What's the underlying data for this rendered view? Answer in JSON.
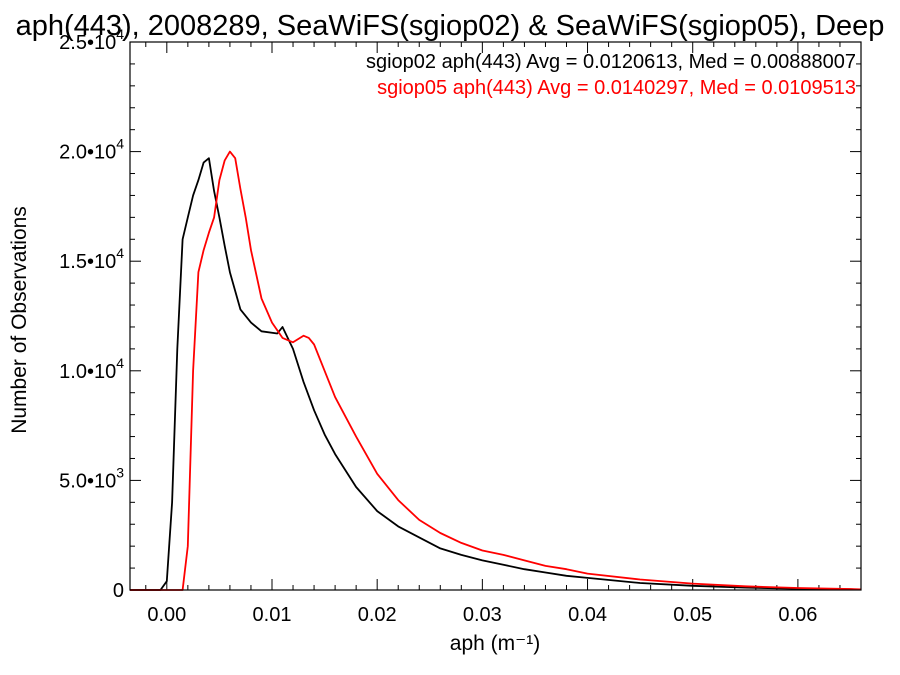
{
  "chart_data": {
    "type": "line",
    "title": "aph(443), 2008289, SeaWiFS(sgiop02) & SeaWiFS(sgiop05), Deep",
    "xlabel": "aph (m⁻¹)",
    "ylabel": "Number of Observations",
    "xlim": [
      -0.0035,
      0.066
    ],
    "ylim": [
      0,
      25000
    ],
    "grid": false,
    "legend_position": "top-right",
    "x_ticks": [
      0.0,
      0.01,
      0.02,
      0.03,
      0.04,
      0.05,
      0.06
    ],
    "x_tick_labels": [
      "0.00",
      "0.01",
      "0.02",
      "0.03",
      "0.04",
      "0.05",
      "0.06"
    ],
    "y_ticks": [
      0,
      5000,
      10000,
      15000,
      20000,
      25000
    ],
    "y_tick_labels": [
      {
        "mant": "0",
        "exp": ""
      },
      {
        "mant": "5.0•10",
        "exp": "3"
      },
      {
        "mant": "1.0•10",
        "exp": "4"
      },
      {
        "mant": "1.5•10",
        "exp": "4"
      },
      {
        "mant": "2.0•10",
        "exp": "4"
      },
      {
        "mant": "2.5•10",
        "exp": "4"
      }
    ],
    "series": [
      {
        "name": "sgiop02 aph(443) Avg = 0.0120613, Med = 0.00888007",
        "color": "#000000",
        "x": [
          -0.0006,
          0.0,
          0.0005,
          0.001,
          0.0015,
          0.002,
          0.0025,
          0.003,
          0.0035,
          0.004,
          0.0045,
          0.005,
          0.0055,
          0.006,
          0.007,
          0.008,
          0.009,
          0.0105,
          0.011,
          0.012,
          0.013,
          0.014,
          0.015,
          0.016,
          0.018,
          0.02,
          0.022,
          0.024,
          0.026,
          0.028,
          0.03,
          0.032,
          0.034,
          0.036,
          0.038,
          0.04,
          0.045,
          0.05,
          0.055,
          0.06,
          0.065
        ],
        "y": [
          0,
          400,
          4000,
          11000,
          16000,
          17000,
          18000,
          18700,
          19500,
          19700,
          18200,
          17000,
          15700,
          14500,
          12800,
          12200,
          11800,
          11700,
          12000,
          11000,
          9500,
          8200,
          7100,
          6200,
          4700,
          3600,
          2900,
          2400,
          1900,
          1600,
          1350,
          1150,
          950,
          800,
          650,
          550,
          320,
          190,
          110,
          60,
          30
        ]
      },
      {
        "name": "sgiop05 aph(443) Avg = 0.0140297, Med = 0.0109513",
        "color": "#ff0000",
        "x": [
          0.0015,
          0.002,
          0.0025,
          0.003,
          0.0035,
          0.004,
          0.0045,
          0.005,
          0.0055,
          0.006,
          0.0065,
          0.007,
          0.0075,
          0.008,
          0.009,
          0.01,
          0.011,
          0.012,
          0.013,
          0.0135,
          0.014,
          0.015,
          0.016,
          0.018,
          0.02,
          0.022,
          0.024,
          0.026,
          0.028,
          0.03,
          0.032,
          0.034,
          0.036,
          0.038,
          0.04,
          0.045,
          0.05,
          0.055,
          0.06,
          0.065
        ],
        "y": [
          0,
          2000,
          10000,
          14500,
          15500,
          16300,
          17000,
          18700,
          19600,
          20000,
          19700,
          18300,
          17000,
          15500,
          13300,
          12200,
          11500,
          11300,
          11600,
          11500,
          11200,
          10000,
          8800,
          7000,
          5300,
          4100,
          3200,
          2600,
          2150,
          1800,
          1600,
          1350,
          1100,
          950,
          750,
          480,
          290,
          170,
          90,
          45
        ]
      }
    ]
  }
}
